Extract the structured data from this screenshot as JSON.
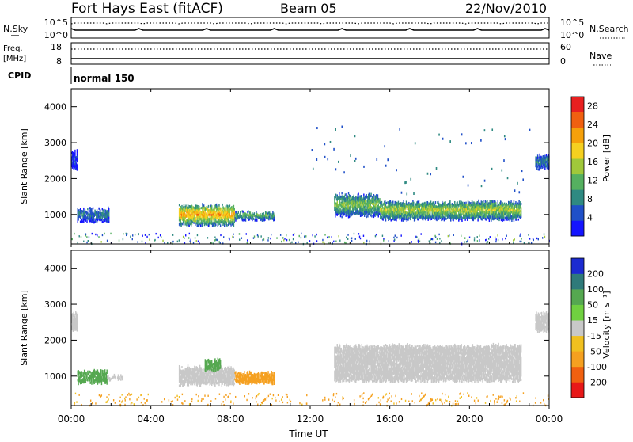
{
  "header": {
    "station": "Fort Hays East (fitACF)",
    "beam": "Beam 05",
    "date": "22/Nov/2010"
  },
  "noise_panel": {
    "left_label": "N.Sky",
    "right_label": "N.Search",
    "left_ticks": [
      "10^5",
      "10^0"
    ],
    "right_ticks": [
      "10^5",
      "10^0"
    ]
  },
  "freq_panel": {
    "left_label_1": "Freq.",
    "left_label_2": "[MHz]",
    "right_label": "Nave",
    "left_ticks": [
      "18",
      "8"
    ],
    "right_ticks": [
      "60",
      "0"
    ]
  },
  "cpid_panel": {
    "label": "CPID",
    "mode": "normal 150"
  },
  "chart_data": [
    {
      "type": "heatmap",
      "quantity": "Power",
      "ylabel": "Slant Range [km]",
      "y_ticks": [
        "1000",
        "2000",
        "3000",
        "4000"
      ],
      "ylim": [
        180,
        4500
      ],
      "colorbar_label": "Power [dB]",
      "colorbar_ticks": [
        "4",
        "8",
        "12",
        "16",
        "20",
        "24",
        "28"
      ],
      "colorbar_range": [
        0,
        30
      ],
      "colors": [
        "#1414ff",
        "#2050c8",
        "#2f8a82",
        "#55b060",
        "#a0c83a",
        "#f5d020",
        "#f5a00a",
        "#f06010",
        "#e82020"
      ],
      "regions": [
        {
          "t_start": 0.0,
          "t_end": 0.3,
          "r_lo": 2200,
          "r_hi": 2800,
          "level": 4
        },
        {
          "t_start": 0.3,
          "t_end": 1.9,
          "r_lo": 750,
          "r_hi": 1200,
          "level": 8
        },
        {
          "t_start": 5.4,
          "t_end": 8.2,
          "r_lo": 650,
          "r_hi": 1300,
          "level": 22
        },
        {
          "t_start": 8.2,
          "t_end": 10.2,
          "r_lo": 800,
          "r_hi": 1100,
          "level": 12
        },
        {
          "t_start": 13.2,
          "t_end": 15.5,
          "r_lo": 900,
          "r_hi": 1600,
          "level": 14
        },
        {
          "t_start": 15.5,
          "t_end": 22.6,
          "r_lo": 800,
          "r_hi": 1400,
          "level": 16
        },
        {
          "t_start": 23.3,
          "t_end": 24.0,
          "r_lo": 2200,
          "r_hi": 2700,
          "level": 8
        }
      ]
    },
    {
      "type": "heatmap",
      "quantity": "Velocity",
      "ylabel": "Slant Range [km]",
      "y_ticks": [
        "1000",
        "2000",
        "3000",
        "4000"
      ],
      "ylim": [
        180,
        4500
      ],
      "colorbar_label": "Velocity [m s⁻¹]",
      "colorbar_ticks": [
        "200",
        "100",
        "50",
        "15",
        "-15",
        "-50",
        "-100",
        "-200"
      ],
      "colors": [
        "#1c2bd0",
        "#2f7a7a",
        "#55a850",
        "#70d040",
        "#c8c8c8",
        "#f0c020",
        "#f5a020",
        "#f06010",
        "#e81818"
      ],
      "regions": [
        {
          "t_start": 0.0,
          "t_end": 0.3,
          "r_lo": 2200,
          "r_hi": 2800,
          "value": 0
        },
        {
          "t_start": 0.3,
          "t_end": 1.8,
          "r_lo": 750,
          "r_hi": 1200,
          "value": 40
        },
        {
          "t_start": 1.8,
          "t_end": 2.6,
          "r_lo": 850,
          "r_hi": 1050,
          "value": 0
        },
        {
          "t_start": 5.4,
          "t_end": 8.2,
          "r_lo": 700,
          "r_hi": 1300,
          "value": 0
        },
        {
          "t_start": 6.7,
          "t_end": 7.5,
          "r_lo": 1100,
          "r_hi": 1500,
          "value": 40
        },
        {
          "t_start": 8.2,
          "t_end": 10.2,
          "r_lo": 750,
          "r_hi": 1150,
          "value": -40
        },
        {
          "t_start": 13.2,
          "t_end": 22.6,
          "r_lo": 800,
          "r_hi": 1900,
          "value": 0
        },
        {
          "t_start": 23.3,
          "t_end": 24.0,
          "r_lo": 2200,
          "r_hi": 2800,
          "value": 0
        }
      ]
    }
  ],
  "time_axis": {
    "ticks": [
      "00:00",
      "04:00",
      "08:00",
      "12:00",
      "16:00",
      "20:00",
      "00:00"
    ],
    "label": "Time UT"
  }
}
